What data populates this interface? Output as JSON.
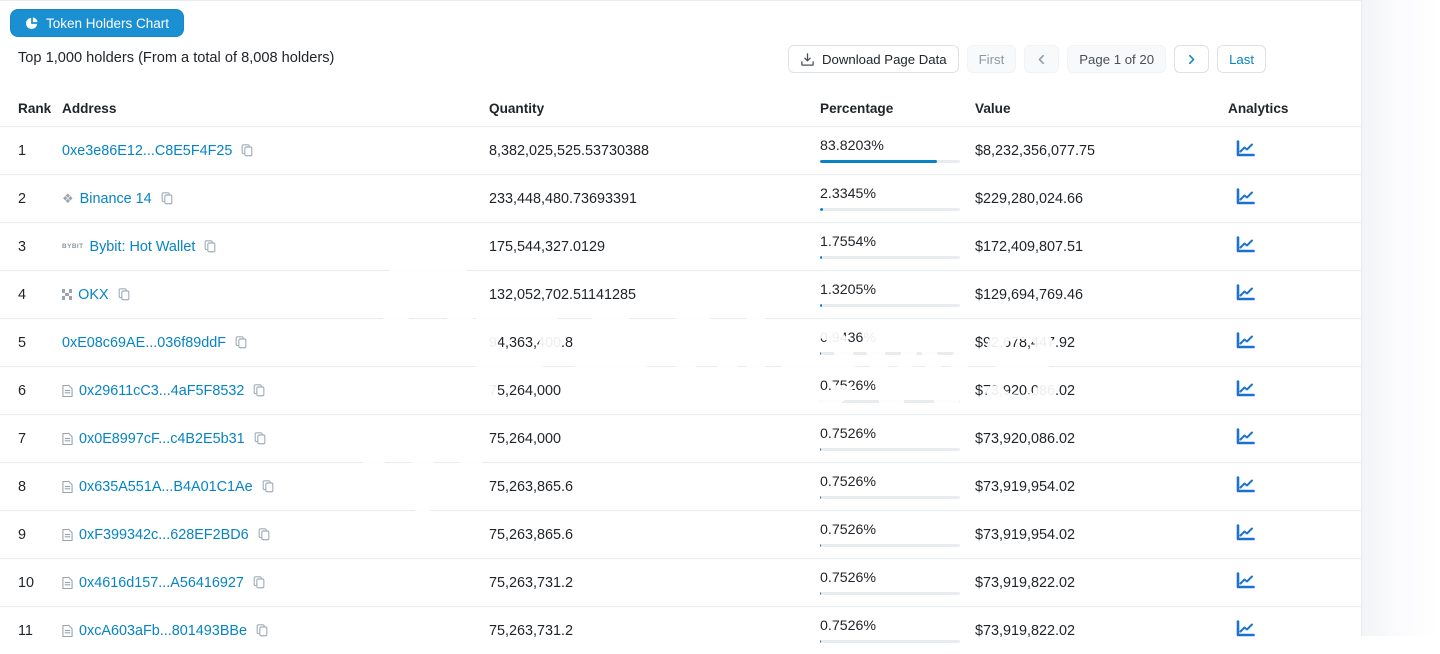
{
  "toolbar": {
    "chart_button_label": "Token Holders Chart",
    "subtitle": "Top 1,000 holders (From a total of 8,008 holders)",
    "download_label": "Download Page Data"
  },
  "pagination": {
    "first_label": "First",
    "page_label": "Page 1 of 20",
    "last_label": "Last",
    "prev_icon": "chevron-left",
    "next_icon": "chevron-right"
  },
  "watermark": {
    "text": "PANews"
  },
  "colors": {
    "accent_blue": "#1a8fd1",
    "link_blue": "#0784c3",
    "analytics_blue": "#1a73d1",
    "border_gray": "#e9ecef"
  },
  "table": {
    "headers": {
      "rank": "Rank",
      "address": "Address",
      "quantity": "Quantity",
      "percentage": "Percentage",
      "value": "Value",
      "analytics": "Analytics"
    },
    "rows": [
      {
        "rank": "1",
        "icon": null,
        "address": "0xe3e86E12...C8E5F4F25",
        "quantity": "8,382,025,525.53730388",
        "percentage": "83.8203%",
        "percent_value": 83.8203,
        "value": "$8,232,356,077.75"
      },
      {
        "rank": "2",
        "icon": "binance",
        "address": "Binance 14",
        "quantity": "233,448,480.73693391",
        "percentage": "2.3345%",
        "percent_value": 2.3345,
        "value": "$229,280,024.66"
      },
      {
        "rank": "3",
        "icon": "bybit",
        "address": "Bybit: Hot Wallet",
        "quantity": "175,544,327.0129",
        "percentage": "1.7554%",
        "percent_value": 1.7554,
        "value": "$172,409,807.51"
      },
      {
        "rank": "4",
        "icon": "okx",
        "address": "OKX",
        "quantity": "132,052,702.51141285",
        "percentage": "1.3205%",
        "percent_value": 1.3205,
        "value": "$129,694,769.46"
      },
      {
        "rank": "5",
        "icon": null,
        "address": "0xE08c69AE...036f89ddF",
        "quantity": "94,363,400.8",
        "percentage": "0.9436%",
        "percent_value": 0.9436,
        "value": "$92,678,447.92"
      },
      {
        "rank": "6",
        "icon": "contract",
        "address": "0x29611cC3...4aF5F8532",
        "quantity": "75,264,000",
        "percentage": "0.7526%",
        "percent_value": 0.7526,
        "value": "$73,920,086.02"
      },
      {
        "rank": "7",
        "icon": "contract",
        "address": "0x0E8997cF...c4B2E5b31",
        "quantity": "75,264,000",
        "percentage": "0.7526%",
        "percent_value": 0.7526,
        "value": "$73,920,086.02"
      },
      {
        "rank": "8",
        "icon": "contract",
        "address": "0x635A551A...B4A01C1Ae",
        "quantity": "75,263,865.6",
        "percentage": "0.7526%",
        "percent_value": 0.7526,
        "value": "$73,919,954.02"
      },
      {
        "rank": "9",
        "icon": "contract",
        "address": "0xF399342c...628EF2BD6",
        "quantity": "75,263,865.6",
        "percentage": "0.7526%",
        "percent_value": 0.7526,
        "value": "$73,919,954.02"
      },
      {
        "rank": "10",
        "icon": "contract",
        "address": "0x4616d157...A56416927",
        "quantity": "75,263,731.2",
        "percentage": "0.7526%",
        "percent_value": 0.7526,
        "value": "$73,919,822.02"
      },
      {
        "rank": "11",
        "icon": "contract",
        "address": "0xcA603aFb...801493BBe",
        "quantity": "75,263,731.2",
        "percentage": "0.7526%",
        "percent_value": 0.7526,
        "value": "$73,919,822.02"
      }
    ]
  }
}
